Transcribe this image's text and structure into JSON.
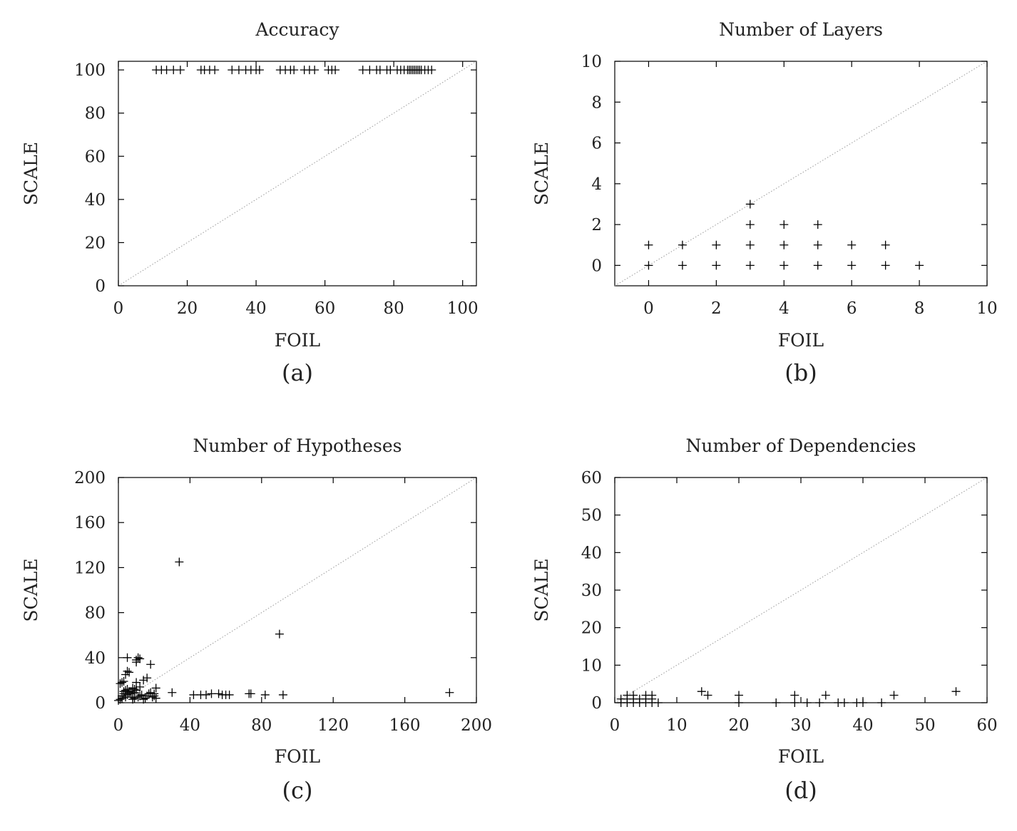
{
  "chart_data": [
    {
      "type": "scatter",
      "title": "Accuracy",
      "xlabel": "FOIL",
      "ylabel": "SCALE",
      "panel_label": "(a)",
      "xlim": [
        0,
        104
      ],
      "ylim": [
        0,
        104
      ],
      "xticks": [
        "0",
        "20",
        "40",
        "60",
        "80",
        "100"
      ],
      "yticks": [
        "0",
        "20",
        "40",
        "60",
        "80",
        "100"
      ],
      "diagonal": true,
      "points": [
        [
          11,
          100
        ],
        [
          12.5,
          100
        ],
        [
          14,
          100
        ],
        [
          16,
          100
        ],
        [
          18,
          100
        ],
        [
          24,
          100
        ],
        [
          25,
          100
        ],
        [
          26.5,
          100
        ],
        [
          28,
          100
        ],
        [
          33,
          100
        ],
        [
          35,
          100
        ],
        [
          37,
          100
        ],
        [
          38.5,
          100
        ],
        [
          40,
          100
        ],
        [
          41,
          100
        ],
        [
          47,
          100
        ],
        [
          48.5,
          100
        ],
        [
          50,
          100
        ],
        [
          51,
          100
        ],
        [
          54,
          100
        ],
        [
          55.5,
          100
        ],
        [
          57,
          100
        ],
        [
          61,
          100
        ],
        [
          62,
          100
        ],
        [
          63,
          100
        ],
        [
          71,
          100
        ],
        [
          73,
          100
        ],
        [
          75,
          100
        ],
        [
          76,
          100
        ],
        [
          78,
          100
        ],
        [
          79,
          100
        ],
        [
          81,
          100
        ],
        [
          82,
          100
        ],
        [
          83,
          100
        ],
        [
          84,
          100
        ],
        [
          84.5,
          100
        ],
        [
          85,
          100
        ],
        [
          85.5,
          100
        ],
        [
          86,
          100
        ],
        [
          86.5,
          100
        ],
        [
          87,
          100
        ],
        [
          87.5,
          100
        ],
        [
          88,
          100
        ],
        [
          89,
          100
        ],
        [
          90,
          100
        ],
        [
          91,
          100
        ]
      ]
    },
    {
      "type": "scatter",
      "title": "Number of Layers",
      "xlabel": "FOIL",
      "ylabel": "SCALE",
      "panel_label": "(b)",
      "xlim": [
        -1,
        10
      ],
      "ylim": [
        -1,
        10
      ],
      "xticks": [
        "0",
        "2",
        "4",
        "6",
        "8",
        "10"
      ],
      "yticks": [
        "0",
        "2",
        "4",
        "6",
        "8",
        "10"
      ],
      "diagonal": true,
      "points": [
        [
          0,
          0
        ],
        [
          0,
          1
        ],
        [
          1,
          0
        ],
        [
          1,
          1
        ],
        [
          2,
          0
        ],
        [
          2,
          1
        ],
        [
          3,
          0
        ],
        [
          3,
          1
        ],
        [
          3,
          2
        ],
        [
          3,
          3
        ],
        [
          4,
          0
        ],
        [
          4,
          1
        ],
        [
          4,
          2
        ],
        [
          5,
          0
        ],
        [
          5,
          1
        ],
        [
          5,
          2
        ],
        [
          6,
          0
        ],
        [
          6,
          1
        ],
        [
          7,
          0
        ],
        [
          7,
          1
        ],
        [
          8,
          0
        ]
      ]
    },
    {
      "type": "scatter",
      "title": "Number of Hypotheses",
      "xlabel": "FOIL",
      "ylabel": "SCALE",
      "panel_label": "(c)",
      "xlim": [
        0,
        200
      ],
      "ylim": [
        0,
        200
      ],
      "xticks": [
        "0",
        "40",
        "80",
        "120",
        "160",
        "200"
      ],
      "yticks": [
        "0",
        "40",
        "80",
        "120",
        "160",
        "200"
      ],
      "diagonal": true,
      "points": [
        [
          0,
          2
        ],
        [
          1,
          3
        ],
        [
          2,
          4
        ],
        [
          1,
          17
        ],
        [
          2,
          18
        ],
        [
          3,
          19
        ],
        [
          4,
          25
        ],
        [
          5,
          28
        ],
        [
          6,
          27
        ],
        [
          2,
          6
        ],
        [
          3,
          8
        ],
        [
          4,
          5
        ],
        [
          5,
          7
        ],
        [
          6,
          9
        ],
        [
          7,
          10
        ],
        [
          8,
          5
        ],
        [
          9,
          12
        ],
        [
          10,
          11
        ],
        [
          5,
          40
        ],
        [
          10,
          38
        ],
        [
          11,
          40
        ],
        [
          12,
          39
        ],
        [
          10,
          36
        ],
        [
          8,
          3
        ],
        [
          9,
          4
        ],
        [
          11,
          5
        ],
        [
          12,
          6
        ],
        [
          13,
          7
        ],
        [
          14,
          3
        ],
        [
          15,
          4
        ],
        [
          16,
          6
        ],
        [
          17,
          8
        ],
        [
          18,
          9
        ],
        [
          19,
          5
        ],
        [
          20,
          6
        ],
        [
          21,
          4
        ],
        [
          10,
          18
        ],
        [
          12,
          14
        ],
        [
          14,
          20
        ],
        [
          16,
          22
        ],
        [
          18,
          34
        ],
        [
          20,
          8
        ],
        [
          21,
          13
        ],
        [
          5,
          12
        ],
        [
          6,
          10
        ],
        [
          7,
          8
        ],
        [
          8,
          13
        ],
        [
          9,
          9
        ],
        [
          3,
          10
        ],
        [
          4,
          11
        ],
        [
          30,
          9
        ],
        [
          34,
          125
        ],
        [
          42,
          7
        ],
        [
          46,
          7
        ],
        [
          49,
          7
        ],
        [
          52,
          8
        ],
        [
          56,
          8
        ],
        [
          58,
          7
        ],
        [
          60,
          7
        ],
        [
          62,
          7
        ],
        [
          73,
          8
        ],
        [
          74,
          8
        ],
        [
          82,
          7
        ],
        [
          90,
          61
        ],
        [
          92,
          7
        ],
        [
          185,
          9
        ]
      ]
    },
    {
      "type": "scatter",
      "title": "Number of Dependencies",
      "xlabel": "FOIL",
      "ylabel": "SCALE",
      "panel_label": "(d)",
      "xlim": [
        0,
        60
      ],
      "ylim": [
        0,
        60
      ],
      "xticks": [
        "0",
        "10",
        "20",
        "30",
        "40",
        "50",
        "60"
      ],
      "yticks": [
        "0",
        "10",
        "20",
        "30",
        "40",
        "50",
        "60"
      ],
      "diagonal": true,
      "points": [
        [
          1,
          0
        ],
        [
          1,
          1
        ],
        [
          2,
          0
        ],
        [
          2,
          1
        ],
        [
          2,
          2
        ],
        [
          3,
          0
        ],
        [
          3,
          1
        ],
        [
          3,
          2
        ],
        [
          4,
          0
        ],
        [
          4,
          1
        ],
        [
          5,
          0
        ],
        [
          5,
          1
        ],
        [
          5,
          2
        ],
        [
          6,
          0
        ],
        [
          6,
          1
        ],
        [
          6,
          2
        ],
        [
          7,
          0
        ],
        [
          14,
          3
        ],
        [
          15,
          2
        ],
        [
          20,
          0
        ],
        [
          20,
          2
        ],
        [
          26,
          0
        ],
        [
          29,
          0
        ],
        [
          29,
          2
        ],
        [
          31,
          0
        ],
        [
          33,
          0
        ],
        [
          34,
          2
        ],
        [
          36,
          0
        ],
        [
          37,
          0
        ],
        [
          39,
          0
        ],
        [
          40,
          0
        ],
        [
          43,
          0
        ],
        [
          45,
          2
        ],
        [
          55,
          3
        ]
      ]
    }
  ]
}
